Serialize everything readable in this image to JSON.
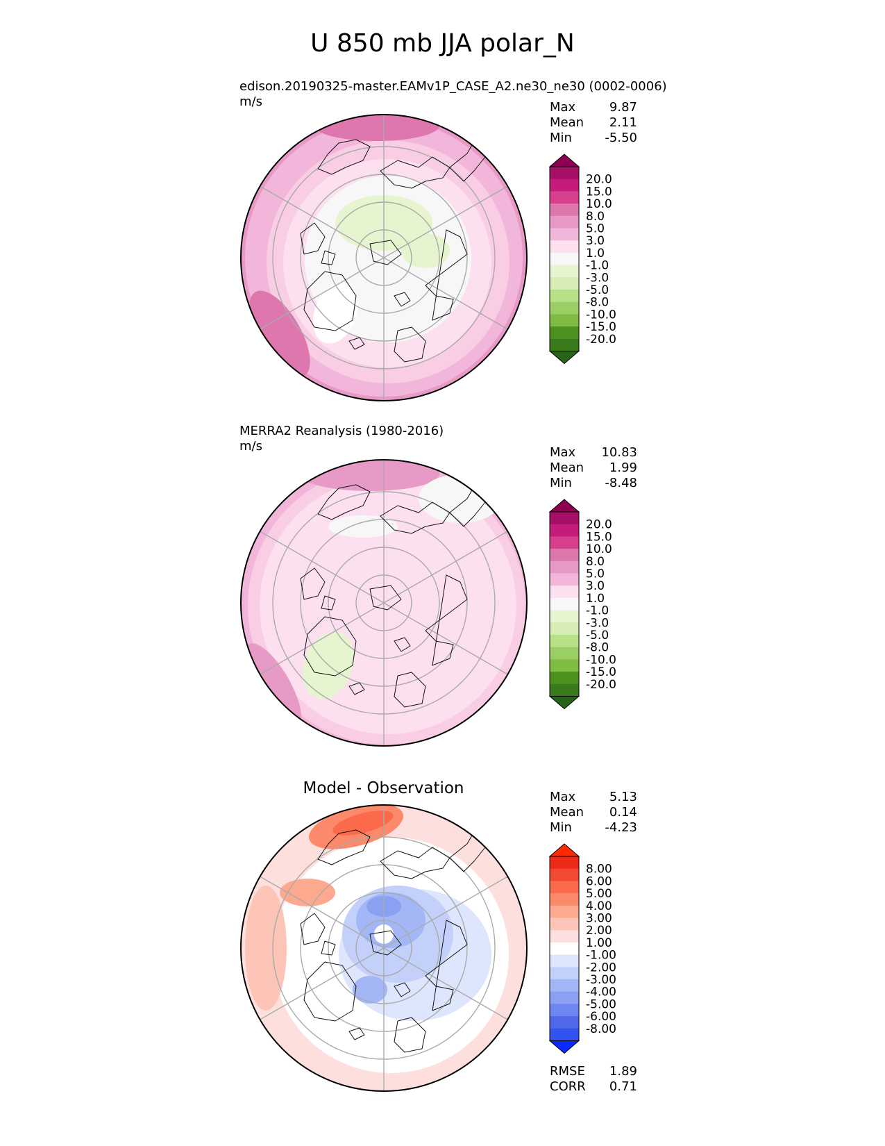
{
  "title": "U 850 mb JJA polar_N",
  "colors": {
    "pos_ramp": [
      "#f7f7f7",
      "#fde0ef",
      "#f9cde3",
      "#f1b6da",
      "#e89ac6",
      "#de77ae",
      "#cf4a95",
      "#c51b7d",
      "#a50f67",
      "#8e0152"
    ],
    "neg_ramp": [
      "#f7f7f7",
      "#e6f5d0",
      "#d5ecb5",
      "#b8e186",
      "#9bcf66",
      "#7fbc41",
      "#5fa22d",
      "#4d9221",
      "#3a7a1a",
      "#276419"
    ],
    "diff_pos": [
      "#ffffff",
      "#fde0dd",
      "#fcc5b8",
      "#fca98f",
      "#fc8a6a",
      "#fb6a4a",
      "#f44a32",
      "#ee2a1a",
      "#ff2b00"
    ],
    "diff_neg": [
      "#ffffff",
      "#dde6fc",
      "#c2d0fa",
      "#a3b7f6",
      "#8aa1f2",
      "#6e86ef",
      "#4f69ea",
      "#3353f0",
      "#0a2bff"
    ],
    "grid": "#aaaaaa",
    "coast": "#111111"
  },
  "panels": [
    {
      "id": "test",
      "title": "edison.20190325-master.EAMv1P_CASE_A2.ne30_ne30 (0002-0006)",
      "units": "m/s",
      "stats": {
        "max_label": "Max",
        "max": "9.87",
        "mean_label": "Mean",
        "mean": "2.11",
        "min_label": "Min",
        "min": "-5.50"
      }
    },
    {
      "id": "reference",
      "title": "MERRA2 Reanalysis (1980-2016)",
      "units": "m/s",
      "stats": {
        "max_label": "Max",
        "max": "10.83",
        "mean_label": "Mean",
        "mean": "1.99",
        "min_label": "Min",
        "min": "-8.48"
      }
    },
    {
      "id": "diff",
      "title": "Model - Observation",
      "units": "",
      "stats": {
        "max_label": "Max",
        "max": "5.13",
        "mean_label": "Mean",
        "mean": "0.14",
        "min_label": "Min",
        "min": "-4.23"
      },
      "metrics": {
        "rmse_label": "RMSE",
        "rmse": "1.89",
        "corr_label": "CORR",
        "corr": "0.71"
      }
    }
  ],
  "chart_data": [
    {
      "type": "heatmap",
      "projection": "north-polar-stereographic",
      "title": "edison.20190325-master.EAMv1P_CASE_A2.ne30_ne30 (0002-0006)",
      "units": "m/s",
      "colorbar_levels": [
        "20.0",
        "15.0",
        "10.0",
        "8.0",
        "5.0",
        "3.0",
        "1.0",
        "-1.0",
        "-3.0",
        "-5.0",
        "-8.0",
        "-10.0",
        "-15.0",
        "-20.0"
      ],
      "max": 9.87,
      "mean": 2.11,
      "min": -5.5
    },
    {
      "type": "heatmap",
      "projection": "north-polar-stereographic",
      "title": "MERRA2 Reanalysis (1980-2016)",
      "units": "m/s",
      "colorbar_levels": [
        "20.0",
        "15.0",
        "10.0",
        "8.0",
        "5.0",
        "3.0",
        "1.0",
        "-1.0",
        "-3.0",
        "-5.0",
        "-8.0",
        "-10.0",
        "-15.0",
        "-20.0"
      ],
      "max": 10.83,
      "mean": 1.99,
      "min": -8.48
    },
    {
      "type": "heatmap",
      "projection": "north-polar-stereographic",
      "title": "Model - Observation",
      "colorbar_levels": [
        "8.00",
        "6.00",
        "5.00",
        "4.00",
        "3.00",
        "2.00",
        "1.00",
        "-1.00",
        "-2.00",
        "-3.00",
        "-4.00",
        "-5.00",
        "-6.00",
        "-8.00"
      ],
      "max": 5.13,
      "mean": 0.14,
      "min": -4.23,
      "rmse": 1.89,
      "corr": 0.71
    }
  ]
}
